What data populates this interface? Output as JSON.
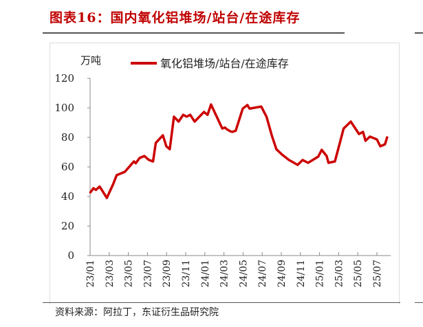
{
  "header": {
    "title": "图表16：国内氧化铝堆场/站台/在途库存"
  },
  "footer": {
    "source": "资料来源：阿拉丁，东证衍生品研究院"
  },
  "colors": {
    "title": "#c00000",
    "series": "#cc0000",
    "axis": "#888888"
  },
  "chart_data": {
    "type": "line",
    "title": "",
    "ylabel": "万吨",
    "xlabel": "",
    "ylim": [
      0,
      120
    ],
    "yticks": [
      0,
      20,
      40,
      60,
      80,
      100,
      120
    ],
    "xlim": [
      "2023-01-01",
      "2025-08-15"
    ],
    "xtick_labels": [
      "23/01",
      "23/03",
      "23/05",
      "23/07",
      "23/09",
      "23/11",
      "24/01",
      "24/03",
      "24/05",
      "24/07",
      "24/09",
      "24/11",
      "25/01",
      "25/03",
      "25/05",
      "25/07"
    ],
    "grid": false,
    "legend": "top",
    "series": [
      {
        "name": "氧化铝堆场/站台/在途库存",
        "points": [
          [
            "2023-01-02",
            42.8
          ],
          [
            "2023-01-12",
            45.6
          ],
          [
            "2023-01-20",
            44.4
          ],
          [
            "2023-02-01",
            46.7
          ],
          [
            "2023-02-22",
            39.0
          ],
          [
            "2023-03-14",
            48.4
          ],
          [
            "2023-03-25",
            54.4
          ],
          [
            "2023-04-20",
            56.7
          ],
          [
            "2023-05-19",
            63.7
          ],
          [
            "2023-05-25",
            62.5
          ],
          [
            "2023-06-06",
            66.0
          ],
          [
            "2023-06-21",
            67.4
          ],
          [
            "2023-07-06",
            64.7
          ],
          [
            "2023-07-19",
            63.7
          ],
          [
            "2023-07-28",
            76.3
          ],
          [
            "2023-08-20",
            81.4
          ],
          [
            "2023-08-31",
            74.0
          ],
          [
            "2023-09-11",
            72.0
          ],
          [
            "2023-09-24",
            94.0
          ],
          [
            "2023-10-09",
            90.7
          ],
          [
            "2023-10-24",
            95.3
          ],
          [
            "2023-11-04",
            94.0
          ],
          [
            "2023-11-15",
            95.3
          ],
          [
            "2023-11-29",
            90.7
          ],
          [
            "2023-12-29",
            97.2
          ],
          [
            "2024-01-10",
            95.3
          ],
          [
            "2024-01-21",
            102.3
          ],
          [
            "2024-02-25",
            86.0
          ],
          [
            "2024-03-04",
            86.7
          ],
          [
            "2024-03-10",
            85.6
          ],
          [
            "2024-03-21",
            84.2
          ],
          [
            "2024-03-28",
            83.7
          ],
          [
            "2024-04-08",
            84.5
          ],
          [
            "2024-04-30",
            99.5
          ],
          [
            "2024-05-15",
            101.9
          ],
          [
            "2024-05-22",
            99.5
          ],
          [
            "2024-06-28",
            100.9
          ],
          [
            "2024-07-15",
            94.0
          ],
          [
            "2024-08-01",
            81.4
          ],
          [
            "2024-08-16",
            72.0
          ],
          [
            "2024-09-03",
            68.4
          ],
          [
            "2024-09-25",
            64.7
          ],
          [
            "2024-10-23",
            61.4
          ],
          [
            "2024-11-08",
            64.7
          ],
          [
            "2024-11-25",
            62.8
          ],
          [
            "2024-12-10",
            64.7
          ],
          [
            "2024-12-28",
            67.0
          ],
          [
            "2025-01-08",
            71.6
          ],
          [
            "2025-01-24",
            67.4
          ],
          [
            "2025-01-30",
            62.8
          ],
          [
            "2025-02-18",
            63.7
          ],
          [
            "2025-03-02",
            74.0
          ],
          [
            "2025-03-17",
            86.0
          ],
          [
            "2025-04-09",
            90.7
          ],
          [
            "2025-05-05",
            82.3
          ],
          [
            "2025-05-18",
            83.7
          ],
          [
            "2025-05-26",
            77.7
          ],
          [
            "2025-06-09",
            80.5
          ],
          [
            "2025-07-01",
            78.6
          ],
          [
            "2025-07-12",
            74.0
          ],
          [
            "2025-07-27",
            75.3
          ],
          [
            "2025-08-03",
            80.0
          ]
        ]
      }
    ]
  }
}
